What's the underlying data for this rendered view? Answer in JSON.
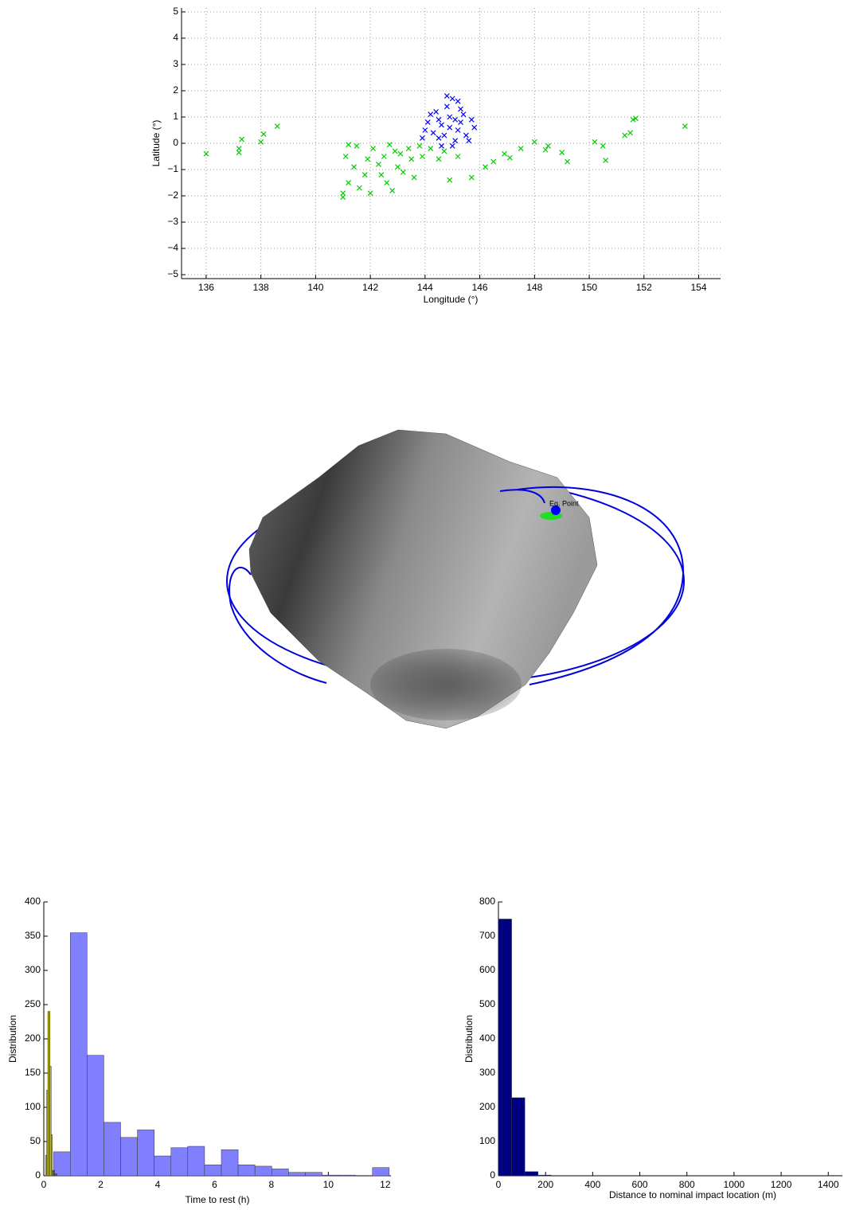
{
  "chart_data": [
    {
      "type": "scatter",
      "xlabel": "Longitude (°)",
      "ylabel": "Latitude (°)",
      "grid": true,
      "xlim": [
        135.1,
        154.8
      ],
      "xticks": [
        136,
        138,
        140,
        142,
        144,
        146,
        148,
        150,
        152,
        154
      ],
      "ylim": [
        -5.15,
        5.15
      ],
      "yticks": [
        {
          "value": -5,
          "label": "−5"
        },
        {
          "value": -4,
          "label": "−4"
        },
        {
          "value": -3,
          "label": "−3"
        },
        {
          "value": -2,
          "label": "−2"
        },
        {
          "value": -1,
          "label": "−1"
        },
        0,
        1,
        2,
        3,
        4,
        5
      ],
      "series": [
        {
          "color": "#00cc00",
          "x": [
            136,
            137.2,
            137.3,
            137.2,
            138,
            138.1,
            138.6,
            148,
            148.5,
            149,
            149.2,
            150.2,
            150.5,
            150.6,
            151.3,
            151.5,
            151.6,
            151.7,
            153.5,
            146.5,
            146.9,
            147.5,
            145.7,
            144.9,
            146.2,
            145.2,
            147.1,
            148.4,
            141,
            141.2,
            141.1,
            141.5,
            141.8,
            142,
            142.3,
            142.6,
            142.9,
            143.2,
            143.5,
            143.8,
            141.4,
            142.1,
            142.7,
            143.1,
            143.6,
            144.2,
            144.5,
            141.0,
            141.6,
            142.4,
            143.0,
            143.9,
            144.7,
            141.2,
            142.5,
            143.4,
            141.9,
            142.8
          ],
          "y": [
            -0.4,
            -0.2,
            0.15,
            -0.35,
            0.05,
            0.35,
            0.65,
            0.05,
            -0.1,
            -0.35,
            -0.7,
            0.05,
            -0.1,
            -0.65,
            0.3,
            0.4,
            0.9,
            0.95,
            0.65,
            -0.7,
            -0.4,
            -0.2,
            -1.3,
            -1.4,
            -0.9,
            -0.5,
            -0.55,
            -0.25,
            -1.9,
            -1.5,
            -0.5,
            -0.1,
            -1.2,
            -1.9,
            -0.8,
            -1.5,
            -0.3,
            -1.1,
            -0.6,
            -0.1,
            -0.9,
            -0.2,
            -0.05,
            -0.4,
            -1.3,
            -0.2,
            -0.6,
            -2.05,
            -1.7,
            -1.2,
            -0.9,
            -0.5,
            -0.3,
            -0.05,
            -0.5,
            -0.2,
            -0.6,
            -1.8
          ]
        },
        {
          "color": "#0000ff",
          "x": [
            144.9,
            144.5,
            145.3,
            144.3,
            145.5,
            144.8,
            145,
            144.6,
            145.1,
            144.1,
            145.7,
            144.4,
            145.3,
            144.7,
            145.2,
            144,
            145.8,
            144.9,
            144.6,
            145.4,
            144.2,
            145,
            143.9,
            145.6,
            144.8,
            145.2,
            144.5,
            145.1
          ],
          "y": [
            0.6,
            0.9,
            0.8,
            0.4,
            0.3,
            1.4,
            1.7,
            -0.1,
            0.1,
            0.8,
            0.9,
            1.2,
            1.3,
            0.3,
            0.5,
            0.5,
            0.6,
            1.0,
            0.7,
            1.1,
            1.1,
            -0.1,
            0.2,
            0.1,
            1.8,
            1.6,
            0.2,
            0.9
          ]
        }
      ]
    },
    {
      "type": "histogram",
      "xlabel": "Time to rest (h)",
      "ylabel": "Distribution",
      "xlim": [
        0,
        12.2
      ],
      "xticks": [
        0,
        2,
        4,
        6,
        8,
        10,
        12
      ],
      "ylim": [
        0,
        400
      ],
      "yticks": [
        0,
        50,
        100,
        150,
        200,
        250,
        300,
        350,
        400
      ],
      "series": [
        {
          "color": "#8080ff",
          "bins": [
            0.34,
            0.93,
            1.52,
            2.11,
            2.7,
            3.29,
            3.88,
            4.47,
            5.06,
            5.65,
            6.24,
            6.83,
            7.42,
            8.01,
            8.6,
            9.19,
            9.78,
            10.37,
            10.96,
            11.55,
            12.14
          ],
          "values": [
            35,
            355,
            176,
            78,
            56,
            67,
            29,
            41,
            43,
            16,
            38,
            16,
            14,
            10,
            5,
            5,
            1,
            1,
            0,
            12
          ]
        },
        {
          "color": "#cccc00",
          "bins": [
            0.06,
            0.1,
            0.14,
            0.18,
            0.22,
            0.26,
            0.3
          ],
          "values": [
            30,
            125,
            240,
            240,
            160,
            60
          ]
        },
        {
          "color": "#555555",
          "bins": [
            0.3,
            0.38,
            0.46
          ],
          "values": [
            8,
            3
          ]
        }
      ]
    },
    {
      "type": "histogram",
      "xlabel": "Distance to nominal impact location (m)",
      "ylabel": "Distribution",
      "xlim": [
        0,
        1460
      ],
      "xticks": [
        0,
        200,
        400,
        600,
        800,
        1000,
        1200,
        1400
      ],
      "ylim": [
        0,
        800
      ],
      "yticks": [
        0,
        100,
        200,
        300,
        400,
        500,
        600,
        700,
        800
      ],
      "series": [
        {
          "color": "#000080",
          "bins": [
            0,
            56,
            112,
            168,
            224,
            280,
            336,
            392,
            448,
            504,
            560,
            616,
            672,
            728,
            784,
            840,
            896,
            952,
            1008,
            1064,
            1120,
            1176,
            1232,
            1288,
            1344,
            1400,
            1456
          ],
          "values": [
            750,
            228,
            12,
            2,
            0,
            0,
            0,
            0,
            0,
            0,
            0,
            0,
            0,
            0,
            0,
            0,
            0,
            0,
            0,
            0,
            0,
            0,
            0,
            0,
            0,
            1
          ]
        }
      ]
    }
  ],
  "figure": {
    "annotation": "Eq. Point"
  }
}
